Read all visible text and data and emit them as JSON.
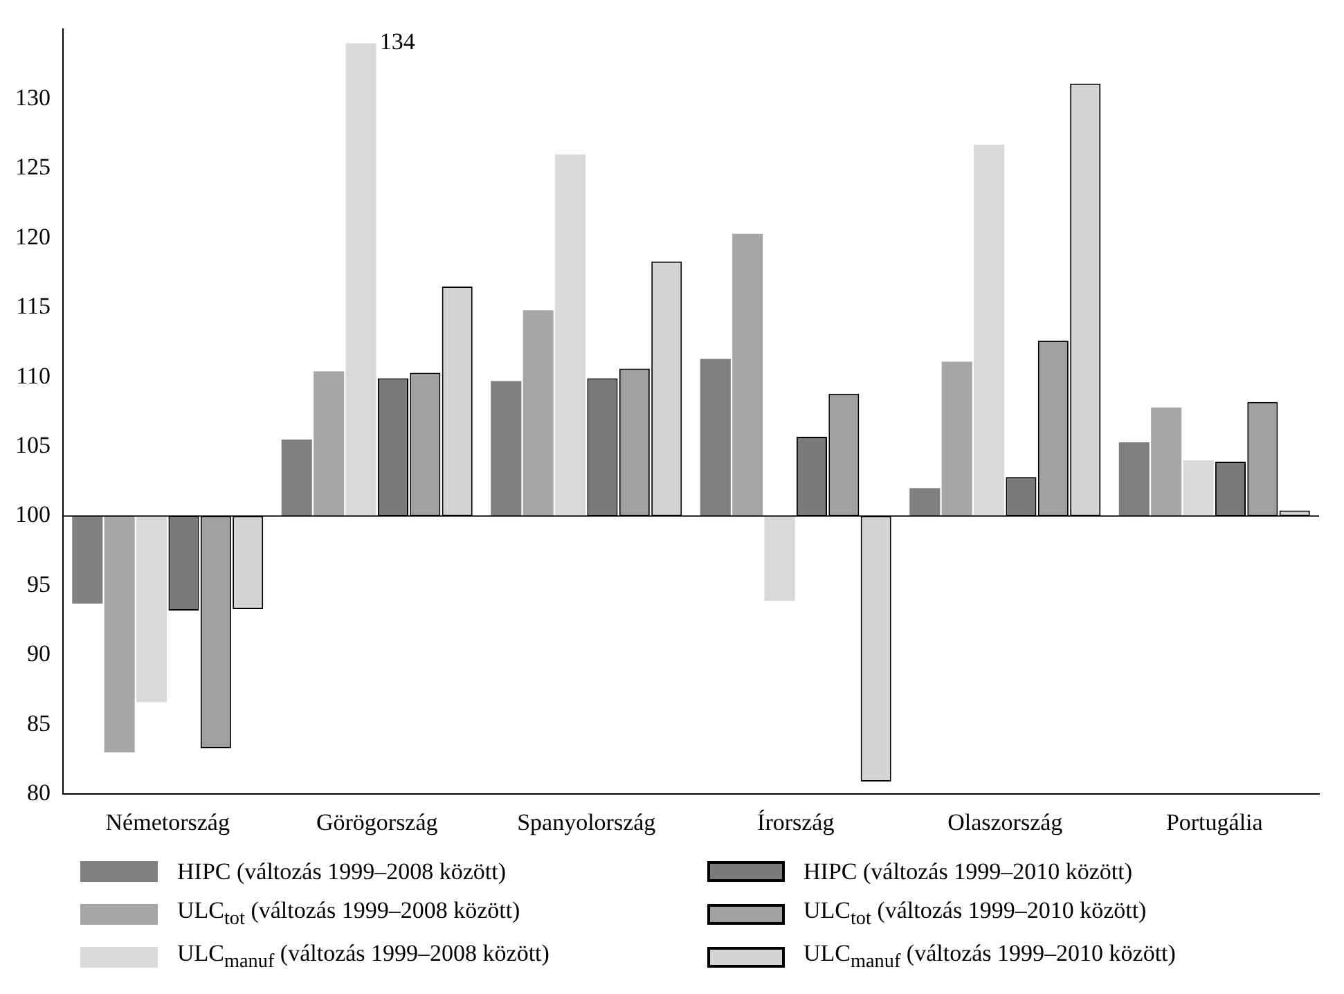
{
  "chart_data": {
    "type": "bar",
    "categories": [
      "Németország",
      "Görögország",
      "Spanyolország",
      "Írország",
      "Olaszország",
      "Portugália"
    ],
    "series": [
      {
        "name": "HIPC (változás 1999–2008 között)",
        "color": "#808080",
        "base": [
          100,
          100,
          100,
          100,
          100,
          100
        ],
        "values": [
          -6.3,
          5.5,
          9.7,
          11.3,
          2.0,
          5.3
        ]
      },
      {
        "name": "ULC$_{tot}$ (változás 1999–2008 között)",
        "color": "#a6a6a6",
        "base": [
          100,
          100,
          100,
          100,
          100,
          100
        ],
        "values": [
          -17.0,
          10.4,
          14.8,
          20.3,
          11.1,
          7.8
        ]
      },
      {
        "name": "ULC$_{manuf}$ (változás 1999–2008 között)",
        "color": "#d9d9d9",
        "base": [
          100,
          100,
          100,
          100,
          100,
          100
        ],
        "values": [
          -13.4,
          34,
          26.0,
          -6.1,
          26.7,
          4.0
        ]
      },
      {
        "name": "HIPC (változás 1999–2010 között)",
        "color": "#7a7a7a",
        "base": [
          100,
          100,
          100,
          100,
          100,
          100
        ],
        "values": [
          -6.8,
          9.9,
          9.9,
          5.7,
          2.8,
          3.9
        ]
      },
      {
        "name": "ULC$_{tot}$ (változás 1999–2010 között)",
        "color": "#a0a0a0",
        "base": [
          100,
          100,
          100,
          100,
          100,
          100
        ],
        "values": [
          -16.7,
          10.3,
          10.6,
          8.8,
          12.6,
          8.2
        ]
      },
      {
        "name": "ULC$_{manuf}$ (változás 1999–2010 között)",
        "color": "#d4d4d4",
        "base": [
          100,
          100,
          100,
          100,
          100,
          100
        ],
        "values": [
          -6.7,
          16.5,
          18.3,
          -19.1,
          31.1,
          0.4
        ]
      }
    ],
    "ylim": [
      80,
      135
    ],
    "yticks": [
      80,
      85,
      90,
      95,
      100,
      105,
      110,
      115,
      120,
      125,
      130
    ],
    "ref_lines": [
      {
        "axis": "y",
        "value": 100,
        "color": "#000000"
      }
    ],
    "annotations": [
      {
        "text": "134",
        "x": "Görögország",
        "y": 134
      }
    ],
    "grid": false,
    "legend": "bottom"
  }
}
